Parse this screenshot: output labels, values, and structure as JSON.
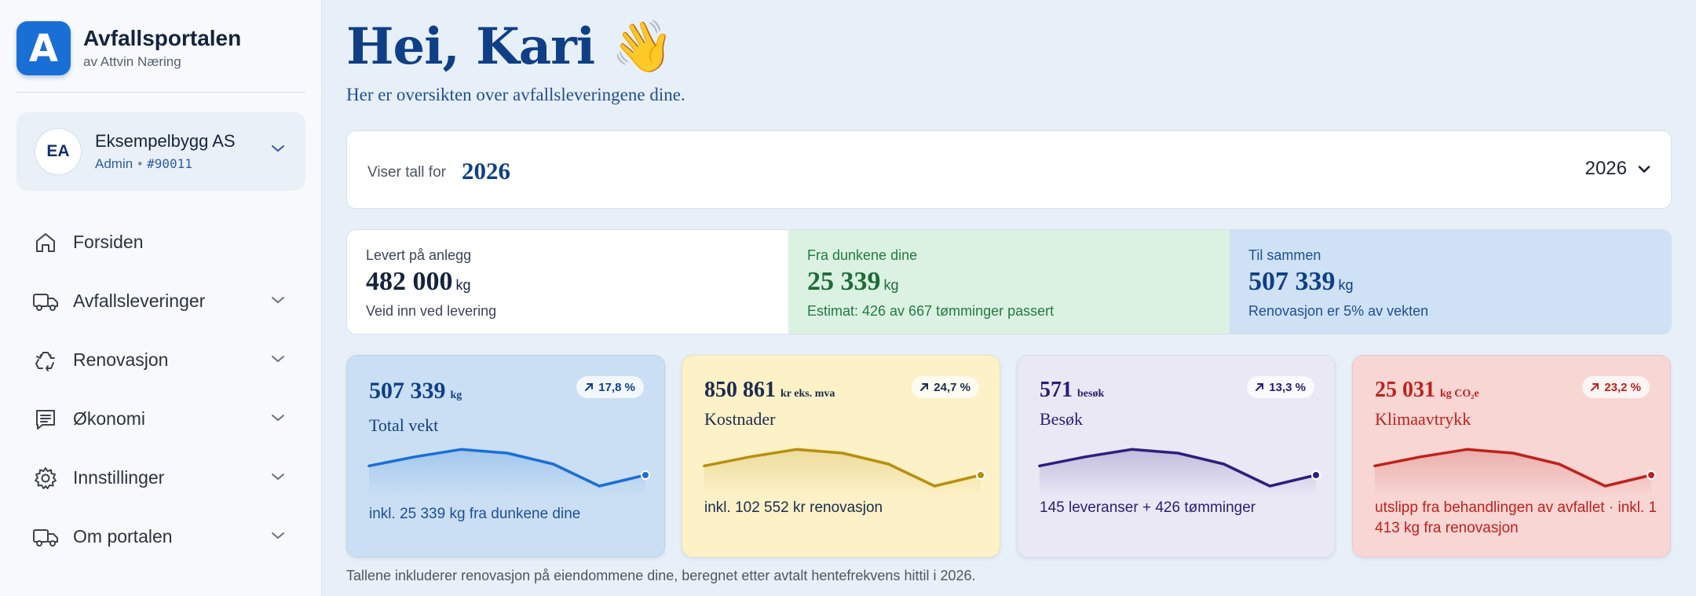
{
  "brand": {
    "logo_letter": "A",
    "title": "Avfallsportalen",
    "subtitle": "av Attvin Næring",
    "color": "#1a6fd6"
  },
  "account": {
    "initials": "EA",
    "name": "Eksempelbygg AS",
    "role": "Admin",
    "separator": "•",
    "id": "#90011"
  },
  "nav": [
    {
      "label": "Forsiden",
      "icon": "home-icon"
    },
    {
      "label": "Avfallsleveringer",
      "icon": "truck-icon",
      "expandable": true
    },
    {
      "label": "Renovasjon",
      "icon": "recycle-icon",
      "expandable": true
    },
    {
      "label": "Økonomi",
      "icon": "invoice-icon",
      "expandable": true
    },
    {
      "label": "Innstillinger",
      "icon": "gear-icon",
      "expandable": true
    },
    {
      "label": "Om portalen",
      "icon": "truck-icon",
      "expandable": true
    }
  ],
  "header": {
    "greeting": "Hei, Kari",
    "wave": "👋",
    "subtitle": "Her er oversikten over avfallsleveringene dine."
  },
  "year_filter": {
    "label": "Viser tall for",
    "value": "2026",
    "selected": "2026"
  },
  "stats": [
    {
      "label": "Levert på anlegg",
      "value": "482 000",
      "unit": "kg",
      "note": "Veid inn ved levering"
    },
    {
      "label": "Fra dunkene dine",
      "value": "25 339",
      "unit": "kg",
      "note": "Estimat: 426 av 667 tømminger passert"
    },
    {
      "label": "Til sammen",
      "value": "507 339",
      "unit": "kg",
      "note": "Renovasjon er 5% av vekten"
    }
  ],
  "cards": [
    {
      "value": "507 339",
      "unit": "kg",
      "title": "Total vekt",
      "change": "17,8 %",
      "note": "inkl. 25 339 kg fra dunkene dine",
      "color": "#1a6fd6",
      "trend": [
        34,
        44,
        52,
        48,
        36,
        12,
        24
      ]
    },
    {
      "value": "850 861",
      "unit": "kr eks. mva",
      "title": "Kostnader",
      "change": "24,7 %",
      "note": "inkl. 102 552 kr renovasjon",
      "color": "#b88f0c",
      "trend": [
        34,
        44,
        52,
        48,
        36,
        12,
        24
      ]
    },
    {
      "value": "571",
      "unit": "besøk",
      "title": "Besøk",
      "change": "13,3 %",
      "note": "145 leveranser + 426 tømminger",
      "color": "#2d1f7e",
      "trend": [
        34,
        44,
        52,
        48,
        36,
        12,
        24
      ]
    },
    {
      "value": "25 031",
      "unit": "kg CO₂e",
      "title": "Klimaavtrykk",
      "change": "23,2 %",
      "note": "utslipp fra behandlingen av avfallet · inkl. 1 413 kg fra renovasjon",
      "color": "#c0211b",
      "trend": [
        34,
        44,
        52,
        48,
        36,
        12,
        24
      ]
    }
  ],
  "footnote": "Tallene inkluderer renovasjon på eiendommene dine, beregnet etter avtalt hentefrekvens hittil i 2026."
}
